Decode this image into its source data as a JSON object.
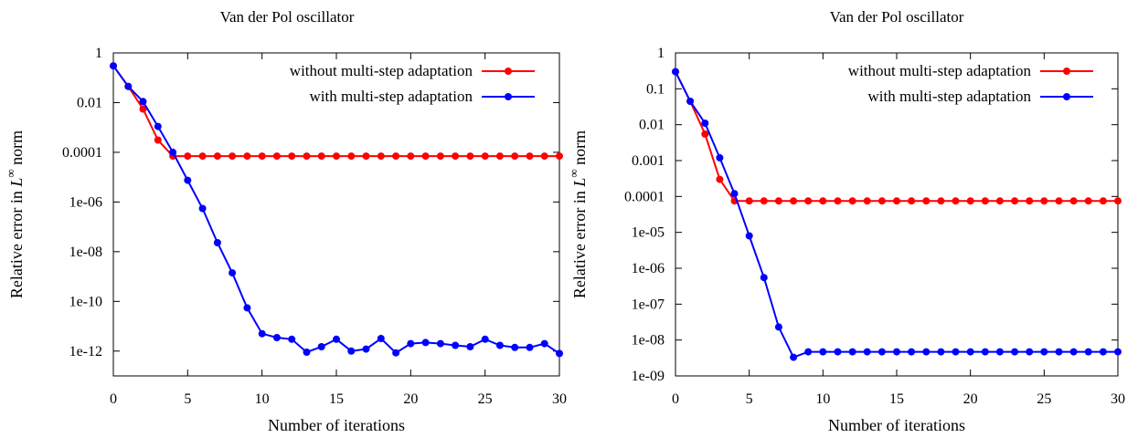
{
  "chart_data": [
    {
      "type": "line",
      "title": "Van der Pol oscillator",
      "xlabel": "Number of iterations",
      "ylabel_prefix": "Relative error in ",
      "ylabel_math": "L",
      "ylabel_sup": "∞",
      "ylabel_suffix": " norm",
      "scale_y": "log",
      "xlim": [
        0,
        30
      ],
      "ylim": [
        1e-13,
        1
      ],
      "xticks": [
        0,
        5,
        10,
        15,
        20,
        25,
        30
      ],
      "xtick_labels": [
        "0",
        "5",
        "10",
        "15",
        "20",
        "25",
        "30"
      ],
      "yticks": [
        1,
        0.01,
        0.0001,
        1e-06,
        1e-08,
        1e-10,
        1e-12
      ],
      "ytick_labels": [
        "1",
        "0.01",
        "0.0001",
        "1e-06",
        "1e-08",
        "1e-10",
        "1e-12"
      ],
      "legend_position": "top-right",
      "grid": false,
      "x": [
        0,
        1,
        2,
        3,
        4,
        5,
        6,
        7,
        8,
        9,
        10,
        11,
        12,
        13,
        14,
        15,
        16,
        17,
        18,
        19,
        20,
        21,
        22,
        23,
        24,
        25,
        26,
        27,
        28,
        29,
        30
      ],
      "series": [
        {
          "name": "without multi-step adaptation",
          "color": "#ff0000",
          "values": [
            0.3,
            0.045,
            0.0055,
            0.00031,
            7e-05,
            7e-05,
            7e-05,
            7e-05,
            7e-05,
            7e-05,
            7e-05,
            7e-05,
            7e-05,
            7e-05,
            7e-05,
            7e-05,
            7e-05,
            7e-05,
            7e-05,
            7e-05,
            7e-05,
            7e-05,
            7e-05,
            7e-05,
            7e-05,
            7e-05,
            7e-05,
            7e-05,
            7e-05,
            7e-05,
            7e-05
          ]
        },
        {
          "name": "with multi-step adaptation",
          "color": "#0000ff",
          "values": [
            0.3,
            0.045,
            0.011,
            0.0011,
            0.0001,
            7.5e-06,
            5.5e-07,
            2.3e-08,
            1.4e-09,
            5.5e-11,
            5e-12,
            3.5e-12,
            3e-12,
            9e-13,
            1.5e-12,
            3e-12,
            1e-12,
            1.2e-12,
            3.2e-12,
            8.5e-13,
            2e-12,
            2.2e-12,
            2e-12,
            1.7e-12,
            1.5e-12,
            3e-12,
            1.7e-12,
            1.4e-12,
            1.4e-12,
            2e-12,
            8e-13
          ]
        }
      ]
    },
    {
      "type": "line",
      "title": "Van der Pol oscillator",
      "xlabel": "Number of iterations",
      "ylabel_prefix": "Relative error in ",
      "ylabel_math": "L",
      "ylabel_sup": "∞",
      "ylabel_suffix": " norm",
      "scale_y": "log",
      "xlim": [
        0,
        30
      ],
      "ylim": [
        1e-09,
        1
      ],
      "xticks": [
        0,
        5,
        10,
        15,
        20,
        25,
        30
      ],
      "xtick_labels": [
        "0",
        "5",
        "10",
        "15",
        "20",
        "25",
        "30"
      ],
      "yticks": [
        1,
        0.1,
        0.01,
        0.001,
        0.0001,
        1e-05,
        1e-06,
        1e-07,
        1e-08,
        1e-09
      ],
      "ytick_labels": [
        "1",
        "0.1",
        "0.01",
        "0.001",
        "0.0001",
        "1e-05",
        "1e-06",
        "1e-07",
        "1e-08",
        "1e-09"
      ],
      "legend_position": "top-right",
      "grid": false,
      "x": [
        0,
        1,
        2,
        3,
        4,
        5,
        6,
        7,
        8,
        9,
        10,
        11,
        12,
        13,
        14,
        15,
        16,
        17,
        18,
        19,
        20,
        21,
        22,
        23,
        24,
        25,
        26,
        27,
        28,
        29,
        30
      ],
      "series": [
        {
          "name": "without multi-step adaptation",
          "color": "#ff0000",
          "values": [
            0.3,
            0.045,
            0.0055,
            0.0003,
            7.5e-05,
            7.5e-05,
            7.5e-05,
            7.5e-05,
            7.5e-05,
            7.5e-05,
            7.5e-05,
            7.5e-05,
            7.5e-05,
            7.5e-05,
            7.5e-05,
            7.5e-05,
            7.5e-05,
            7.5e-05,
            7.5e-05,
            7.5e-05,
            7.5e-05,
            7.5e-05,
            7.5e-05,
            7.5e-05,
            7.5e-05,
            7.5e-05,
            7.5e-05,
            7.5e-05,
            7.5e-05,
            7.5e-05,
            7.5e-05
          ]
        },
        {
          "name": "with multi-step adaptation",
          "color": "#0000ff",
          "values": [
            0.3,
            0.045,
            0.011,
            0.0012,
            0.00012,
            8e-06,
            5.5e-07,
            2.3e-08,
            3.3e-09,
            4.7e-09,
            4.7e-09,
            4.7e-09,
            4.7e-09,
            4.7e-09,
            4.7e-09,
            4.7e-09,
            4.7e-09,
            4.7e-09,
            4.7e-09,
            4.7e-09,
            4.7e-09,
            4.7e-09,
            4.7e-09,
            4.7e-09,
            4.7e-09,
            4.7e-09,
            4.7e-09,
            4.7e-09,
            4.7e-09,
            4.7e-09,
            4.7e-09
          ]
        }
      ]
    }
  ]
}
